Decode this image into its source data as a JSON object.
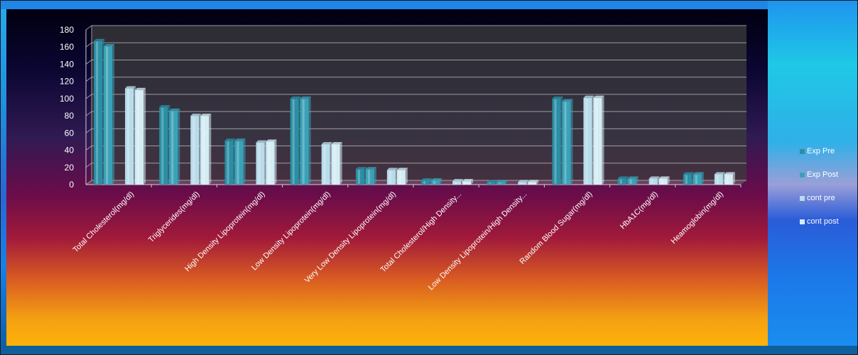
{
  "chart_data": {
    "type": "bar",
    "categories": [
      "Total Cholesterol(mg/dl)",
      "Triglycerides(mg/dl)",
      "High Density Lipoprotein(mg/dl)",
      "Low Density Lipoprotein(mg/dl)",
      "Very Low Density Lipoprotein(mg/dl)",
      "Total Cholesterol/High Density...",
      "Low Density Lipoprotein/High Density...",
      "Random Blood Sugar(mg/dl)",
      "HbA1C(mg/dl)",
      "Heamoglobin(mg/dl)"
    ],
    "series": [
      {
        "name": "Exp Pre",
        "color": "#2a8fa4",
        "values": [
          167,
          90,
          51,
          100,
          18,
          5,
          3,
          100,
          7,
          12
        ]
      },
      {
        "name": "Exp Post",
        "color": "#3aa2b8",
        "values": [
          161,
          86,
          51,
          100,
          18,
          5,
          3,
          97,
          7,
          12
        ]
      },
      {
        "name": "cont pre",
        "color": "#b8dcea",
        "values": [
          112,
          80,
          49,
          47,
          17,
          4,
          3,
          101,
          7,
          12
        ]
      },
      {
        "name": "cont post",
        "color": "#d4ecf4",
        "values": [
          110,
          80,
          50,
          47,
          17,
          4,
          3,
          101,
          7,
          12
        ]
      }
    ],
    "yticks": [
      0,
      20,
      40,
      60,
      80,
      100,
      120,
      140,
      160,
      180
    ],
    "ylim": [
      0,
      180
    ],
    "grid": true,
    "legend_position": "right"
  }
}
